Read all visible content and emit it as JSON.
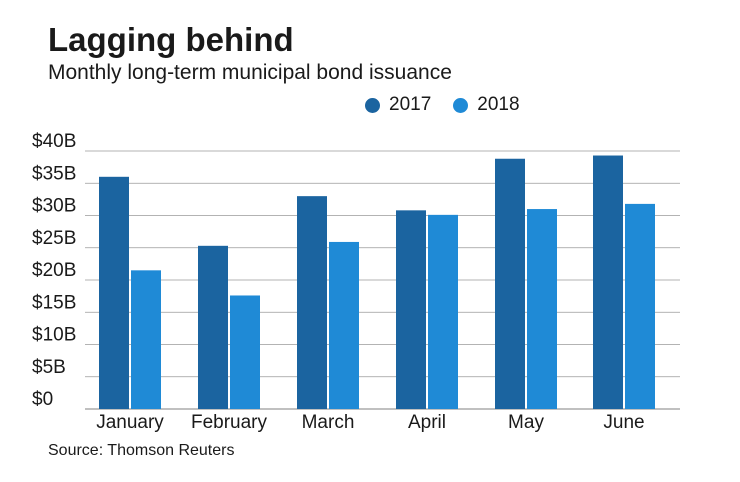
{
  "title": "Lagging behind",
  "subtitle": "Monthly long-term municipal bond issuance",
  "source": "Source: Thomson Reuters",
  "colors": {
    "series_2017": "#1b64a0",
    "series_2018": "#1f8ad6",
    "grid": "#9a9a9a"
  },
  "chart_data": {
    "type": "bar",
    "title": "Lagging behind",
    "subtitle": "Monthly long-term municipal bond issuance",
    "xlabel": "",
    "ylabel": "",
    "categories": [
      "January",
      "February",
      "March",
      "April",
      "May",
      "June"
    ],
    "series": [
      {
        "name": "2017",
        "values": [
          36.0,
          25.3,
          33.0,
          30.8,
          38.8,
          39.3
        ]
      },
      {
        "name": "2018",
        "values": [
          21.5,
          17.6,
          25.9,
          30.1,
          31.0,
          31.8
        ]
      }
    ],
    "ylim": [
      0,
      40
    ],
    "yticks": [
      "$0",
      "$5B",
      "$10B",
      "$15B",
      "$20B",
      "$25B",
      "$30B",
      "$35B",
      "$40B"
    ],
    "grid": true,
    "legend_position": "top-right"
  }
}
